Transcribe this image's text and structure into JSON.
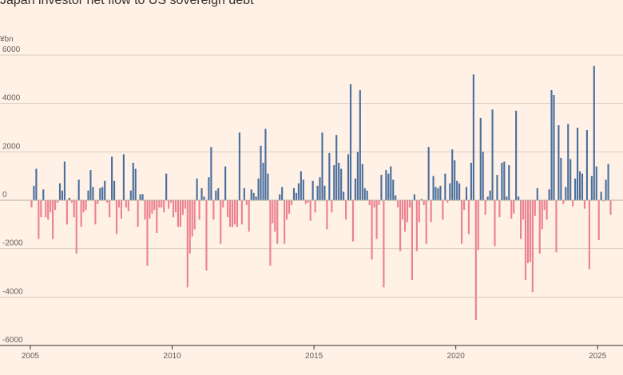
{
  "chart_data": {
    "type": "bar",
    "title": "Japan investor net flow to US sovereign debt",
    "unit_label": "¥bn",
    "ylim": [
      -6000,
      6000
    ],
    "yticks": [
      6000,
      4000,
      2000,
      0,
      -2000,
      -4000,
      -6000
    ],
    "ytick_labels": [
      "6000",
      "4000",
      "2000",
      "0",
      "-2000",
      "-4000",
      "-6000"
    ],
    "xlim_years": [
      2005.0,
      2025.5
    ],
    "xticks": [
      2005,
      2010,
      2015,
      2020,
      2025
    ],
    "xtick_labels": [
      "2005",
      "2010",
      "2015",
      "2020",
      "2025"
    ],
    "start_month": "2005-01",
    "frequency": "monthly",
    "grid": true,
    "colors": {
      "positive": "#4a6f9e",
      "negative": "#ec818f",
      "grid": "#d9cbbd",
      "axis": "#33302e"
    },
    "values": [
      -300,
      600,
      1300,
      -1600,
      -700,
      450,
      -700,
      -800,
      -500,
      -1600,
      -400,
      -100,
      700,
      400,
      1600,
      -1000,
      100,
      -100,
      -700,
      -2200,
      850,
      -1100,
      -500,
      -400,
      400,
      1250,
      550,
      -1000,
      -150,
      500,
      550,
      800,
      -100,
      -700,
      1800,
      800,
      -1400,
      -300,
      -750,
      1900,
      -300,
      -450,
      400,
      1550,
      1300,
      -1100,
      250,
      250,
      -800,
      -2700,
      -750,
      -550,
      -400,
      -1350,
      -300,
      -300,
      -500,
      1100,
      -350,
      -100,
      -700,
      -500,
      -1100,
      -1100,
      -600,
      -350,
      -3600,
      -2200,
      -1500,
      -1200,
      900,
      -800,
      500,
      150,
      -2900,
      950,
      2200,
      -800,
      400,
      500,
      -1800,
      -300,
      1400,
      -700,
      -1100,
      -1100,
      -1000,
      -1100,
      2800,
      -1000,
      500,
      -200,
      -1300,
      450,
      300,
      150,
      900,
      2250,
      1550,
      2950,
      1100,
      -2700,
      -950,
      -1300,
      -1800,
      250,
      550,
      -1800,
      -800,
      -550,
      -200,
      500,
      300,
      700,
      1200,
      850,
      -150,
      -100,
      -850,
      800,
      -500,
      600,
      950,
      2800,
      600,
      -1200,
      1950,
      -500,
      1450,
      2700,
      1550,
      1300,
      350,
      -800,
      1900,
      4800,
      -1700,
      900,
      2000,
      4550,
      1500,
      500,
      400,
      -200,
      -2450,
      -300,
      -1600,
      -200,
      1050,
      -3600,
      1250,
      1100,
      1400,
      850,
      200,
      -300,
      -2100,
      -800,
      -1300,
      -900,
      -300,
      -3300,
      250,
      -2100,
      -900,
      50,
      -200,
      -1800,
      2200,
      -900,
      1000,
      550,
      500,
      600,
      -800,
      1100,
      -100,
      700,
      2100,
      1650,
      800,
      700,
      -1800,
      -400,
      550,
      -1400,
      1550,
      5200,
      -4950,
      -2050,
      3400,
      2000,
      -600,
      150,
      400,
      3750,
      -1900,
      1050,
      -700,
      1550,
      1600,
      150,
      1450,
      -750,
      -550,
      3700,
      150,
      -1600,
      -800,
      -3300,
      -2600,
      -2550,
      -3800,
      -650,
      500,
      -2200,
      -1200,
      -400,
      -800,
      450,
      4550,
      4350,
      -2150,
      3100,
      1750,
      -150,
      550,
      3150,
      1700,
      -250,
      900,
      3000,
      1200,
      1100,
      -350,
      2900,
      -2850,
      1000,
      5550,
      1400,
      -1650,
      350,
      -50,
      850,
      1500,
      -600
    ]
  }
}
